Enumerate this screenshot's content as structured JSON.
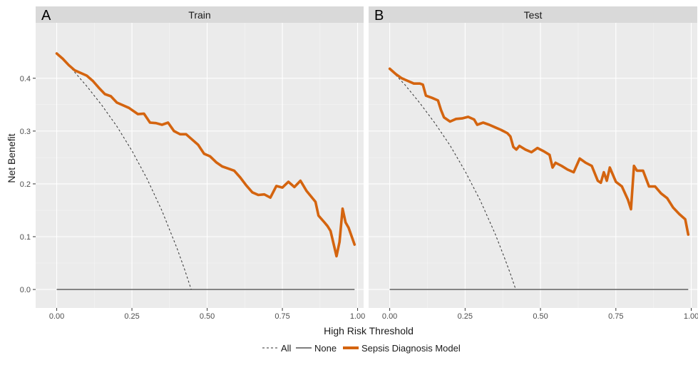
{
  "chart_data": {
    "type": "line",
    "ylabel": "Net Benefit",
    "xlabel": "High Risk Threshold",
    "xlim": [
      -0.07,
      1.02
    ],
    "ylim": [
      -0.035,
      0.505
    ],
    "x_ticks": [
      0,
      0.25,
      0.5,
      0.75,
      1
    ],
    "x_tick_labels": [
      "0.00",
      "0.25",
      "0.50",
      "0.75",
      "1.00"
    ],
    "y_ticks": [
      0,
      0.1,
      0.2,
      0.3,
      0.4
    ],
    "y_tick_labels": [
      "0.0",
      "0.1",
      "0.2",
      "0.3",
      "0.4"
    ],
    "grid": true,
    "legend_position": "bottom",
    "legend": [
      {
        "label": "All",
        "style": "dashed",
        "color": "#333333"
      },
      {
        "label": "None",
        "style": "solid",
        "color": "#555555"
      },
      {
        "label": "Sepsis Diagnosis Model",
        "style": "solid-thick",
        "color": "#d4640f"
      }
    ],
    "panels": [
      {
        "letter": "A",
        "strip_label": "Train",
        "prevalence": 0.447,
        "series": [
          {
            "name": "Sepsis Diagnosis Model",
            "x": [
              0.0,
              0.02,
              0.04,
              0.06,
              0.08,
              0.1,
              0.12,
              0.14,
              0.16,
              0.18,
              0.2,
              0.22,
              0.24,
              0.27,
              0.29,
              0.31,
              0.33,
              0.35,
              0.37,
              0.39,
              0.41,
              0.43,
              0.45,
              0.47,
              0.49,
              0.51,
              0.53,
              0.55,
              0.57,
              0.59,
              0.61,
              0.63,
              0.65,
              0.67,
              0.69,
              0.71,
              0.73,
              0.75,
              0.77,
              0.79,
              0.81,
              0.83,
              0.86,
              0.87,
              0.89,
              0.9,
              0.91,
              0.93,
              0.94,
              0.95,
              0.96,
              0.97,
              0.99
            ],
            "y": [
              0.447,
              0.437,
              0.425,
              0.415,
              0.41,
              0.405,
              0.395,
              0.382,
              0.37,
              0.366,
              0.354,
              0.349,
              0.344,
              0.332,
              0.333,
              0.316,
              0.315,
              0.312,
              0.316,
              0.3,
              0.294,
              0.294,
              0.284,
              0.274,
              0.257,
              0.252,
              0.241,
              0.233,
              0.229,
              0.225,
              0.212,
              0.197,
              0.184,
              0.179,
              0.18,
              0.174,
              0.196,
              0.193,
              0.204,
              0.194,
              0.206,
              0.187,
              0.166,
              0.14,
              0.127,
              0.12,
              0.111,
              0.063,
              0.09,
              0.153,
              0.127,
              0.117,
              0.085
            ]
          },
          {
            "name": "All",
            "x": [
              0.0,
              0.05,
              0.1,
              0.15,
              0.2,
              0.25,
              0.3,
              0.35,
              0.4,
              0.425,
              0.447
            ],
            "y": [
              0.447,
              0.418,
              0.385,
              0.349,
              0.309,
              0.263,
              0.21,
              0.149,
              0.078,
              0.038,
              0.0
            ]
          },
          {
            "name": "None",
            "x": [
              0.0,
              0.99
            ],
            "y": [
              0.0,
              0.0
            ]
          }
        ]
      },
      {
        "letter": "B",
        "strip_label": "Test",
        "prevalence": 0.418,
        "series": [
          {
            "name": "Sepsis Diagnosis Model",
            "x": [
              0.0,
              0.02,
              0.04,
              0.06,
              0.08,
              0.1,
              0.11,
              0.12,
              0.14,
              0.16,
              0.17,
              0.18,
              0.2,
              0.22,
              0.24,
              0.26,
              0.28,
              0.29,
              0.31,
              0.33,
              0.35,
              0.37,
              0.39,
              0.4,
              0.41,
              0.42,
              0.43,
              0.45,
              0.47,
              0.49,
              0.51,
              0.53,
              0.54,
              0.55,
              0.57,
              0.59,
              0.61,
              0.63,
              0.65,
              0.67,
              0.69,
              0.7,
              0.71,
              0.72,
              0.73,
              0.75,
              0.77,
              0.79,
              0.8,
              0.81,
              0.82,
              0.84,
              0.86,
              0.88,
              0.9,
              0.92,
              0.94,
              0.96,
              0.98,
              0.99
            ],
            "y": [
              0.418,
              0.408,
              0.4,
              0.395,
              0.39,
              0.39,
              0.388,
              0.367,
              0.363,
              0.358,
              0.34,
              0.326,
              0.318,
              0.323,
              0.324,
              0.327,
              0.322,
              0.312,
              0.316,
              0.312,
              0.307,
              0.302,
              0.296,
              0.29,
              0.27,
              0.265,
              0.272,
              0.265,
              0.26,
              0.268,
              0.262,
              0.255,
              0.231,
              0.24,
              0.234,
              0.227,
              0.222,
              0.248,
              0.24,
              0.234,
              0.206,
              0.202,
              0.222,
              0.206,
              0.231,
              0.204,
              0.195,
              0.17,
              0.152,
              0.234,
              0.225,
              0.225,
              0.195,
              0.195,
              0.182,
              0.173,
              0.155,
              0.143,
              0.133,
              0.104
            ]
          },
          {
            "name": "All",
            "x": [
              0.0,
              0.05,
              0.1,
              0.15,
              0.2,
              0.25,
              0.3,
              0.35,
              0.38,
              0.4,
              0.418
            ],
            "y": [
              0.418,
              0.388,
              0.353,
              0.315,
              0.273,
              0.224,
              0.169,
              0.105,
              0.061,
              0.03,
              0.0
            ]
          },
          {
            "name": "None",
            "x": [
              0.0,
              0.99
            ],
            "y": [
              0.0,
              0.0
            ]
          }
        ]
      }
    ]
  }
}
